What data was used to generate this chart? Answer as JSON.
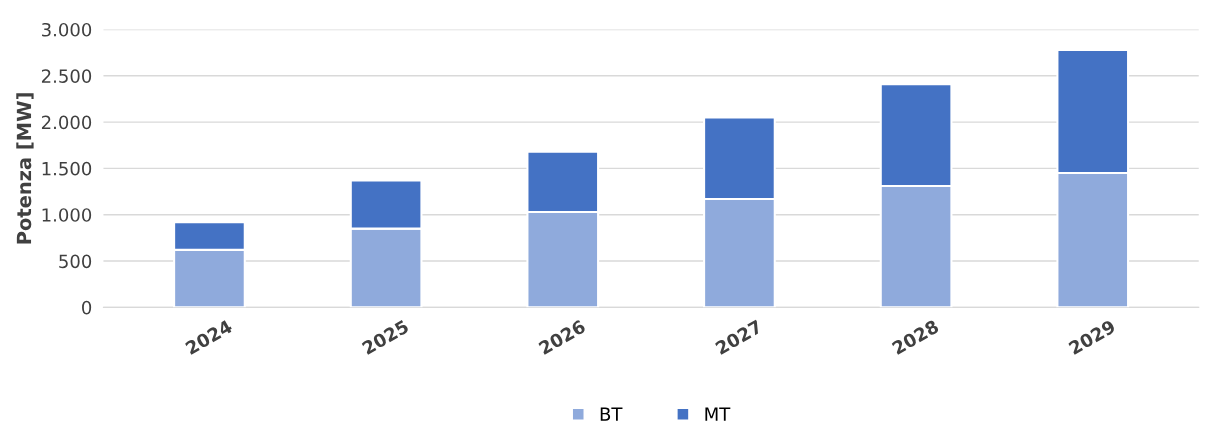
{
  "chart_data": {
    "type": "bar",
    "stacked": true,
    "ylabel": "Potenza [MW]",
    "categories": [
      "2024",
      "2025",
      "2026",
      "2027",
      "2028",
      "2029"
    ],
    "series": [
      {
        "name": "BT",
        "color": "#8faadc",
        "values": [
          620,
          850,
          1030,
          1170,
          1310,
          1450
        ]
      },
      {
        "name": "MT",
        "color": "#4472c4",
        "values": [
          300,
          520,
          650,
          880,
          1100,
          1330
        ]
      }
    ],
    "ylim": [
      0,
      3000
    ],
    "yticks": [
      0,
      500,
      {
        "value": 1000,
        "label": "1.000"
      },
      {
        "value": 1500,
        "label": "1.500"
      },
      {
        "value": 2000,
        "label": "2.000"
      },
      {
        "value": 2500,
        "label": "2.500"
      },
      {
        "value": 3000,
        "label": "3.000"
      }
    ],
    "grid": "y",
    "legend": "bottom"
  }
}
